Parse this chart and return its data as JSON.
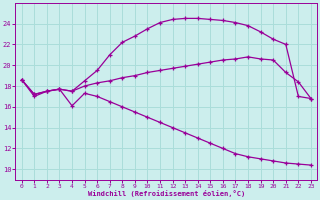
{
  "background_color": "#cceeed",
  "grid_color": "#aaddda",
  "line_color": "#990099",
  "xlabel": "Windchill (Refroidissement éolien,°C)",
  "xlim": [
    -0.5,
    23.5
  ],
  "ylim": [
    9.0,
    26.0
  ],
  "yticks": [
    10,
    12,
    14,
    16,
    18,
    20,
    22,
    24
  ],
  "xticks": [
    0,
    1,
    2,
    3,
    4,
    5,
    6,
    7,
    8,
    9,
    10,
    11,
    12,
    13,
    14,
    15,
    16,
    17,
    18,
    19,
    20,
    21,
    22,
    23
  ],
  "series": [
    {
      "x": [
        0,
        1,
        2,
        3,
        4,
        5,
        6,
        7,
        8,
        9,
        10,
        11,
        12,
        13,
        14,
        15,
        16,
        17,
        18,
        19,
        20,
        21,
        22,
        23
      ],
      "y": [
        18.6,
        17.0,
        17.5,
        17.7,
        17.5,
        18.5,
        19.5,
        21.0,
        22.2,
        22.8,
        23.5,
        24.1,
        24.4,
        24.5,
        24.5,
        24.4,
        24.3,
        24.1,
        23.8,
        23.2,
        22.5,
        22.0,
        17.0,
        16.8
      ]
    },
    {
      "x": [
        0,
        1,
        2,
        3,
        4,
        5,
        6,
        7,
        8,
        9,
        10,
        11,
        12,
        13,
        14,
        15,
        16,
        17,
        18,
        19,
        20,
        21,
        22,
        23
      ],
      "y": [
        18.6,
        17.2,
        17.5,
        17.7,
        17.5,
        18.0,
        18.3,
        18.5,
        18.8,
        19.0,
        19.3,
        19.5,
        19.7,
        19.9,
        20.1,
        20.3,
        20.5,
        20.6,
        20.8,
        20.6,
        20.5,
        19.3,
        18.4,
        16.8
      ]
    },
    {
      "x": [
        0,
        1,
        2,
        3,
        4,
        5,
        6,
        7,
        8,
        9,
        10,
        11,
        12,
        13,
        14,
        15,
        16,
        17,
        18,
        19,
        20,
        21,
        22,
        23
      ],
      "y": [
        18.6,
        17.2,
        17.5,
        17.7,
        16.1,
        17.3,
        17.0,
        16.5,
        16.0,
        15.5,
        15.0,
        14.5,
        14.0,
        13.5,
        13.0,
        12.5,
        12.0,
        11.5,
        11.2,
        11.0,
        10.8,
        10.6,
        10.5,
        10.4
      ]
    }
  ]
}
